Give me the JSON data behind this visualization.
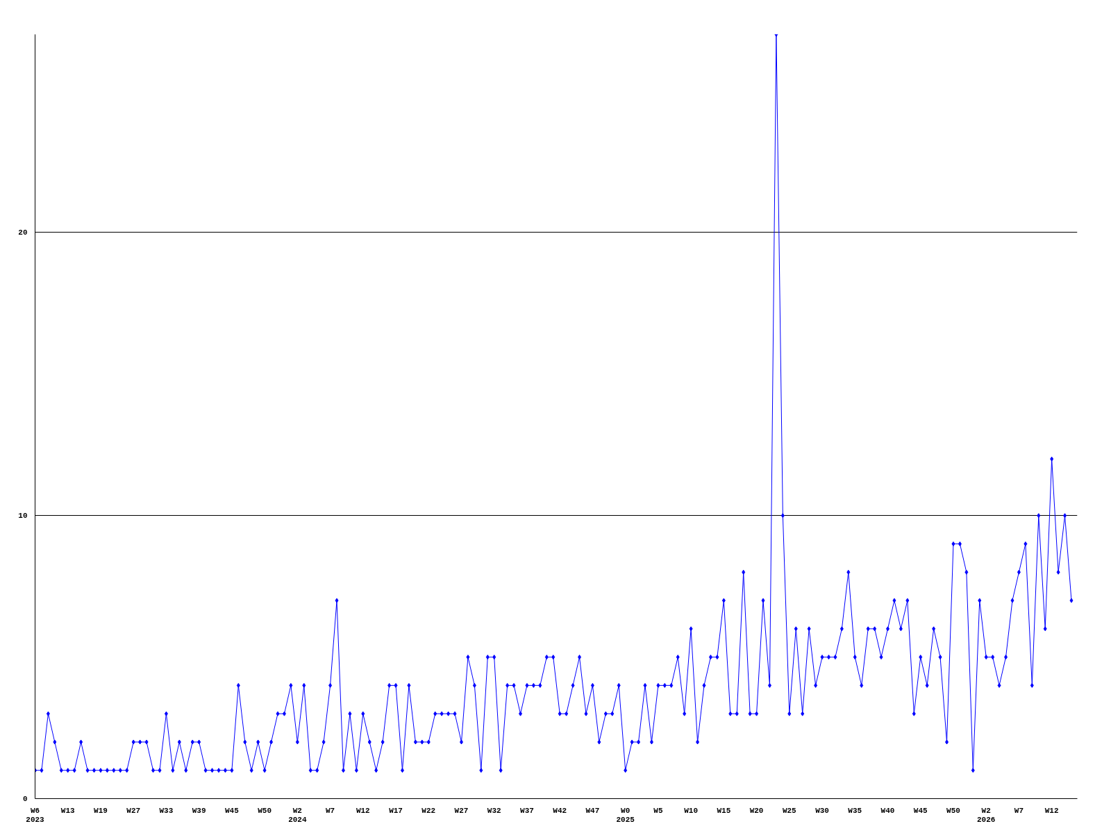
{
  "chart_data": {
    "type": "line",
    "categories": [
      "W6\n2023",
      null,
      null,
      null,
      null,
      "W13",
      null,
      null,
      null,
      null,
      "W19",
      null,
      null,
      null,
      null,
      "W27",
      null,
      null,
      null,
      null,
      "W33",
      null,
      null,
      null,
      null,
      "W39",
      null,
      null,
      null,
      null,
      "W45",
      null,
      null,
      null,
      null,
      "W50",
      null,
      null,
      null,
      null,
      "W2\n2024",
      null,
      null,
      null,
      null,
      "W7",
      null,
      null,
      null,
      null,
      "W12",
      null,
      null,
      null,
      null,
      "W17",
      null,
      null,
      null,
      null,
      "W22",
      null,
      null,
      null,
      null,
      "W27",
      null,
      null,
      null,
      null,
      "W32",
      null,
      null,
      null,
      null,
      "W37",
      null,
      null,
      null,
      null,
      "W42",
      null,
      null,
      null,
      null,
      "W47",
      null,
      null,
      null,
      null,
      "W0\n2025",
      null,
      null,
      null,
      null,
      "W5",
      null,
      null,
      null,
      null,
      "W10",
      null,
      null,
      null,
      null,
      "W15",
      null,
      null,
      null,
      null,
      "W20",
      null,
      null,
      null,
      null,
      "W25",
      null,
      null,
      null,
      null,
      "W30",
      null,
      null,
      null,
      null,
      "W35",
      null,
      null,
      null,
      null,
      "W40",
      null,
      null,
      null,
      null,
      "W45",
      null,
      null,
      null,
      null,
      "W50",
      null,
      null,
      null,
      null,
      "W2\n2026",
      null,
      null,
      null,
      null,
      "W7",
      null,
      null,
      null,
      null,
      "W12",
      null,
      null,
      null
    ],
    "series": [
      {
        "color": "#0000ff",
        "values": [
          1,
          1,
          3,
          2,
          1,
          1,
          1,
          2,
          1,
          1,
          1,
          1,
          1,
          1,
          1,
          2,
          2,
          2,
          1,
          1,
          3,
          1,
          2,
          1,
          2,
          2,
          1,
          1,
          1,
          1,
          1,
          4,
          2,
          1,
          2,
          1,
          2,
          3,
          3,
          4,
          2,
          4,
          1,
          1,
          2,
          4,
          7,
          1,
          3,
          1,
          3,
          2,
          1,
          2,
          4,
          4,
          1,
          4,
          2,
          2,
          2,
          3,
          3,
          3,
          3,
          2,
          5,
          4,
          1,
          5,
          5,
          1,
          4,
          4,
          3,
          4,
          4,
          4,
          5,
          5,
          3,
          3,
          4,
          5,
          3,
          4,
          2,
          3,
          3,
          4,
          1,
          2,
          2,
          4,
          2,
          4,
          4,
          4,
          5,
          3,
          6,
          2,
          4,
          5,
          5,
          7,
          3,
          3,
          8,
          3,
          3,
          7,
          4,
          27,
          10,
          3,
          6,
          3,
          6,
          4,
          5,
          5,
          5,
          6,
          8,
          5,
          4,
          6,
          6,
          5,
          6,
          7,
          6,
          7,
          3,
          5,
          4,
          6,
          5,
          2,
          9,
          9,
          8,
          1,
          7,
          5,
          5,
          4,
          5,
          7,
          8,
          9,
          4,
          10,
          6,
          12,
          8,
          10,
          7
        ]
      }
    ],
    "ylim": [
      0,
      27
    ],
    "yticks": [
      0,
      10,
      20
    ],
    "grid": "y",
    "marker": "diamond",
    "line_style": "solid"
  }
}
